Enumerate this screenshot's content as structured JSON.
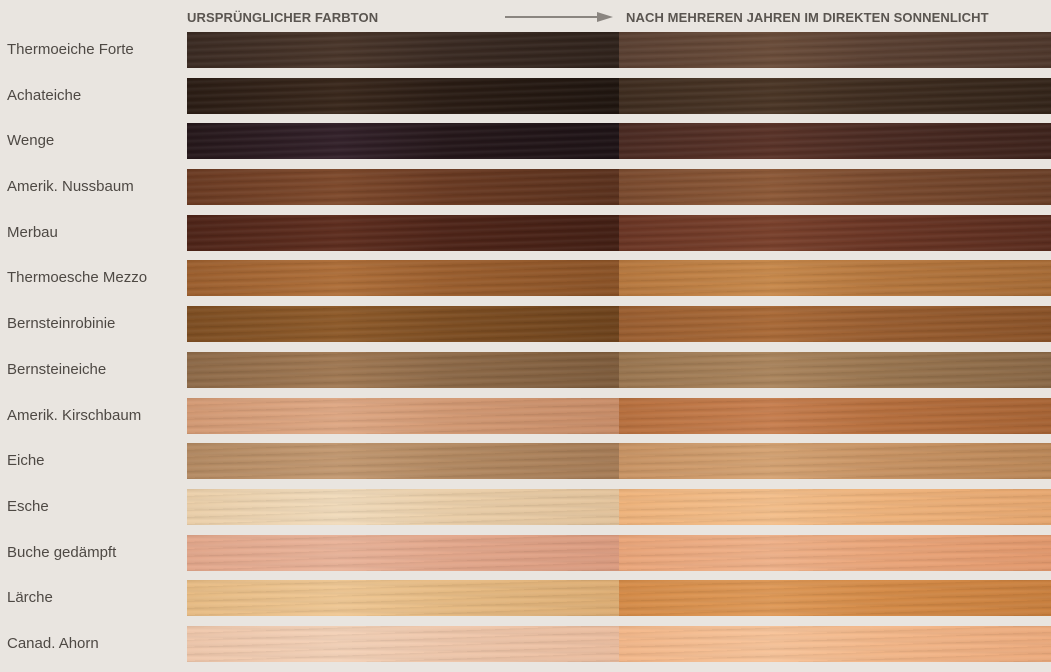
{
  "header": {
    "original_label": "URSPRÜNGLICHER FARBTON",
    "aged_label": "NACH MEHREREN JAHREN IM DIREKTEN SONNENLICHT"
  },
  "colors": {
    "background": "#e9e5e0",
    "text": "#4e4944",
    "arrow": "#8a8580"
  },
  "woods": [
    {
      "name": "Thermoeiche Forte",
      "before": [
        "#3a2a22",
        "#4a362a",
        "#2f221b"
      ],
      "after": [
        "#5a4032",
        "#6b4d3a",
        "#4e372b"
      ]
    },
    {
      "name": "Achateiche",
      "before": [
        "#2a1c14",
        "#3a281c",
        "#1f150f"
      ],
      "after": [
        "#3e2c1f",
        "#4b3626",
        "#332419"
      ]
    },
    {
      "name": "Wenge",
      "before": [
        "#25171a",
        "#33212a",
        "#1e1316"
      ],
      "after": [
        "#4a2a22",
        "#5a3328",
        "#3e231c"
      ]
    },
    {
      "name": "Amerik. Nussbaum",
      "before": [
        "#6a3a22",
        "#7f4a2c",
        "#5a311d"
      ],
      "after": [
        "#7a4a2e",
        "#8e5a38",
        "#6a3f27"
      ]
    },
    {
      "name": "Merbau",
      "before": [
        "#4e2418",
        "#5f2e1f",
        "#431f14"
      ],
      "after": [
        "#6a3524",
        "#7a412c",
        "#5a2c1e"
      ]
    },
    {
      "name": "Thermoesche Mezzo",
      "before": [
        "#9c5f2e",
        "#b0703a",
        "#8a5226"
      ],
      "after": [
        "#b7783e",
        "#c98a4c",
        "#a86c36"
      ]
    },
    {
      "name": "Bernsteinrobinie",
      "before": [
        "#7e4e22",
        "#8f5b2a",
        "#6e431c"
      ],
      "after": [
        "#9a5e30",
        "#ab6b38",
        "#8b5328"
      ]
    },
    {
      "name": "Bernsteineiche",
      "before": [
        "#8e6a48",
        "#a27a54",
        "#7e5c3c"
      ],
      "after": [
        "#9a7650",
        "#ac865e",
        "#8a6846"
      ]
    },
    {
      "name": "Amerik. Kirschbaum",
      "before": [
        "#d49a74",
        "#e0a985",
        "#c98d68"
      ],
      "after": [
        "#b8703e",
        "#c98050",
        "#a86434"
      ]
    },
    {
      "name": "Eiche",
      "before": [
        "#b48a62",
        "#c49a72",
        "#a67c56"
      ],
      "after": [
        "#c99464",
        "#d6a474",
        "#bc8858"
      ]
    },
    {
      "name": "Esche",
      "before": [
        "#ecd0aa",
        "#f2dcbc",
        "#e4c49c"
      ],
      "after": [
        "#f0b47c",
        "#f5c08c",
        "#e8a870"
      ]
    },
    {
      "name": "Buche gedämpft",
      "before": [
        "#e4a88c",
        "#eab49a",
        "#dc9c80"
      ],
      "after": [
        "#eba67a",
        "#f0b28a",
        "#e49a6e"
      ]
    },
    {
      "name": "Lärche",
      "before": [
        "#e8bc84",
        "#f0c894",
        "#deae74"
      ],
      "after": [
        "#d68c48",
        "#e09a58",
        "#ca803e"
      ]
    },
    {
      "name": "Canad. Ahorn",
      "before": [
        "#f0c8ac",
        "#f4d2b8",
        "#ecbea0"
      ],
      "after": [
        "#f4b88a",
        "#f8c49a",
        "#eeac7e"
      ]
    }
  ]
}
